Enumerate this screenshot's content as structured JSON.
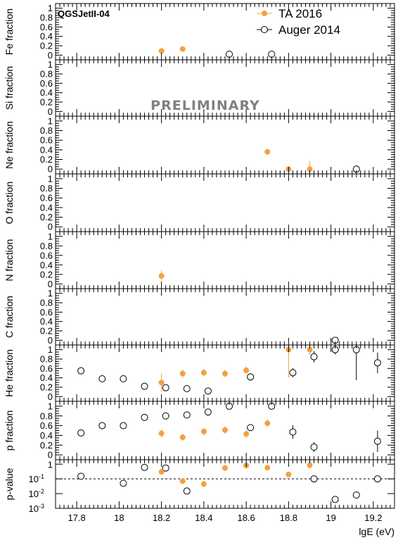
{
  "chart_data": {
    "type": "scatter",
    "model_label": "QGSJetII-04",
    "watermark": "PRELIMINARY",
    "xlabel": "lgE (eV)",
    "xlim": [
      17.7,
      19.3
    ],
    "x_ticks": [
      "17.8",
      "18",
      "18.2",
      "18.4",
      "18.6",
      "18.8",
      "19",
      "19.2"
    ],
    "legend_position": "top-right",
    "fraction_ticks": [
      "0",
      "0.2",
      "0.4",
      "0.6",
      "0.8",
      "1"
    ],
    "series": [
      {
        "name": "TA 2016",
        "marker": "filled-circle",
        "color": "#f5a040"
      },
      {
        "name": "Auger 2014",
        "marker": "open-circle",
        "color": "#000000"
      }
    ],
    "panels": [
      {
        "ylabel": "Fe fraction",
        "ylim": [
          -0.1,
          1.1
        ],
        "ta": [
          [
            18.2,
            0.09,
            0.02
          ],
          [
            18.3,
            0.13,
            0.02
          ]
        ],
        "auger": [
          [
            18.52,
            0.02,
            0
          ],
          [
            18.72,
            0.02,
            0
          ]
        ]
      },
      {
        "ylabel": "Si fraction",
        "ylim": [
          -0.1,
          1.1
        ],
        "ta": [],
        "auger": []
      },
      {
        "ylabel": "Ne fraction",
        "ylim": [
          -0.1,
          1.1
        ],
        "ta": [
          [
            18.7,
            0.36,
            0.06
          ],
          [
            18.8,
            0.0,
            0.02
          ],
          [
            18.9,
            0.0,
            0.17
          ]
        ],
        "auger": [
          [
            19.12,
            0.0,
            0
          ]
        ]
      },
      {
        "ylabel": "O fraction",
        "ylim": [
          -0.1,
          1.1
        ],
        "ta": [],
        "auger": []
      },
      {
        "ylabel": "N fraction",
        "ylim": [
          -0.1,
          1.1
        ],
        "ta": [
          [
            18.2,
            0.17,
            0.12
          ]
        ],
        "auger": []
      },
      {
        "ylabel": "C fraction",
        "ylim": [
          -0.1,
          1.1
        ],
        "ta": [],
        "auger": [
          [
            19.02,
            0.0,
            0
          ]
        ]
      },
      {
        "ylabel": "He fraction",
        "ylim": [
          -0.1,
          1.1
        ],
        "ta": [
          [
            18.2,
            0.3,
            0.2
          ],
          [
            18.3,
            0.49,
            0.09
          ],
          [
            18.4,
            0.51,
            0.08
          ],
          [
            18.5,
            0.49,
            0.08
          ],
          [
            18.6,
            0.56,
            0.08
          ],
          [
            18.8,
            1.0,
            0.6
          ],
          [
            18.9,
            1.0,
            0.12
          ]
        ],
        "auger": [
          [
            17.82,
            0.55,
            0
          ],
          [
            17.92,
            0.38,
            0
          ],
          [
            18.02,
            0.38,
            0
          ],
          [
            18.12,
            0.22,
            0
          ],
          [
            18.22,
            0.19,
            0
          ],
          [
            18.32,
            0.17,
            0
          ],
          [
            18.42,
            0.12,
            0.05
          ],
          [
            18.62,
            0.42,
            0.08
          ],
          [
            18.82,
            0.51,
            0.1
          ],
          [
            18.92,
            0.85,
            0.12
          ],
          [
            19.02,
            1.0,
            0.1
          ],
          [
            19.12,
            1.0,
            0.65
          ],
          [
            19.22,
            0.72,
            0.22
          ]
        ]
      },
      {
        "ylabel": "p fraction",
        "ylim": [
          -0.1,
          1.1
        ],
        "ta": [
          [
            18.2,
            0.44,
            0.08
          ],
          [
            18.3,
            0.36,
            0.07
          ],
          [
            18.4,
            0.48,
            0.08
          ],
          [
            18.5,
            0.51,
            0.08
          ],
          [
            18.6,
            0.43,
            0.08
          ],
          [
            18.7,
            0.65,
            0.08
          ]
        ],
        "auger": [
          [
            17.82,
            0.45,
            0
          ],
          [
            17.92,
            0.6,
            0
          ],
          [
            18.02,
            0.6,
            0
          ],
          [
            18.12,
            0.77,
            0
          ],
          [
            18.22,
            0.8,
            0
          ],
          [
            18.32,
            0.82,
            0
          ],
          [
            18.42,
            0.88,
            0.06
          ],
          [
            18.52,
            1.0,
            0.05
          ],
          [
            18.62,
            0.56,
            0.06
          ],
          [
            18.72,
            1.0,
            0.04
          ],
          [
            18.82,
            0.47,
            0.14
          ],
          [
            18.92,
            0.16,
            0.1
          ],
          [
            19.22,
            0.28,
            0.22
          ]
        ]
      }
    ],
    "pvalue_panel": {
      "ylabel": "p-value",
      "ylim_log10": [
        -3,
        0.3
      ],
      "y_ticks": [
        {
          "exp": 0,
          "label": "1"
        },
        {
          "exp": -1,
          "label": "10",
          "sup": "-1"
        },
        {
          "exp": -2,
          "label": "10",
          "sup": "-2"
        },
        {
          "exp": -3,
          "label": "10",
          "sup": "-3"
        }
      ],
      "reference_line": 0.1,
      "ta": [
        [
          18.2,
          0.3
        ],
        [
          18.3,
          0.07
        ],
        [
          18.4,
          0.045
        ],
        [
          18.5,
          0.55
        ],
        [
          18.6,
          0.8
        ],
        [
          18.7,
          0.58
        ],
        [
          18.8,
          0.2
        ],
        [
          18.9,
          0.85
        ]
      ],
      "auger": [
        [
          17.82,
          0.15
        ],
        [
          18.02,
          0.05
        ],
        [
          18.12,
          0.6
        ],
        [
          18.22,
          0.55
        ],
        [
          18.32,
          0.015
        ],
        [
          18.92,
          0.1
        ],
        [
          19.02,
          0.004
        ],
        [
          19.12,
          0.008
        ],
        [
          19.22,
          0.1
        ]
      ]
    }
  }
}
